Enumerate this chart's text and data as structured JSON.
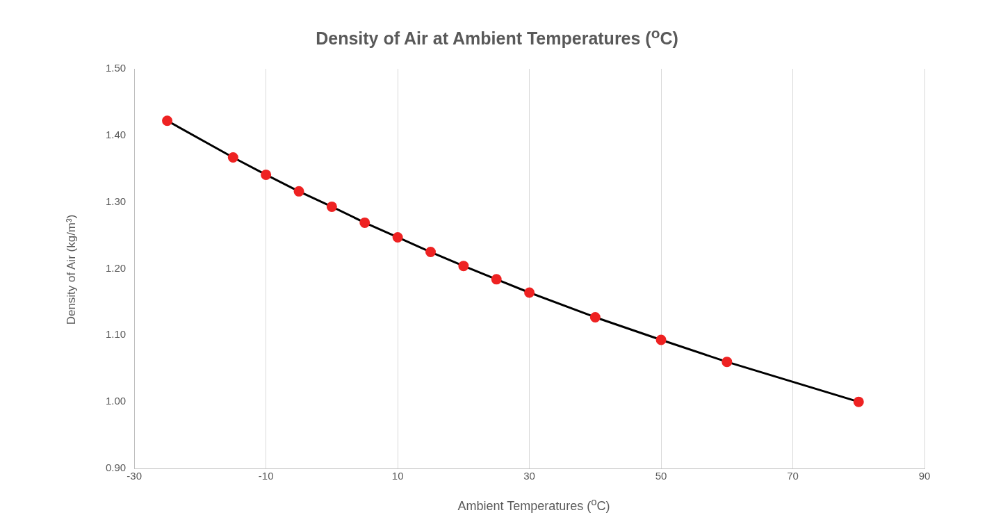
{
  "chart_data": {
    "type": "line",
    "title": "Density of Air at Ambient Temperatures ($^{o}$C)",
    "xlabel": "Ambient Temperatures ($^{o}$C)",
    "ylabel": "Density of Air (kg/m³)",
    "x": [
      -25,
      -15,
      -10,
      -5,
      0,
      5,
      10,
      15,
      20,
      25,
      30,
      40,
      50,
      60,
      80
    ],
    "series": [
      {
        "color": "#000000",
        "colors": [
          "#ee2222",
          "#ee2222",
          "#ee2222",
          "#ee2222",
          "#ee2222",
          "#ee2222",
          "#ee2222",
          "#ee2222",
          "#ee2222",
          "#ee2222",
          "#ee2222",
          "#ee2222",
          "#ee2222",
          "#ee2222",
          "#ee2222"
        ],
        "values": [
          1.422,
          1.367,
          1.341,
          1.316,
          1.293,
          1.269,
          1.247,
          1.225,
          1.204,
          1.184,
          1.164,
          1.127,
          1.093,
          1.06,
          1.0
        ]
      }
    ],
    "xlim": [
      -30,
      90
    ],
    "xticks": [
      -30,
      -10,
      10,
      30,
      50,
      70,
      90
    ],
    "ylim": [
      0.9,
      1.5
    ],
    "yticks": [
      {
        "value": 0.9,
        "label": "0.90"
      },
      {
        "value": 1.0,
        "label": "1.00"
      },
      {
        "value": 1.1,
        "label": "1.10"
      },
      {
        "value": 1.2,
        "label": "1.20"
      },
      {
        "value": 1.3,
        "label": "1.30"
      },
      {
        "value": 1.4,
        "label": "1.40"
      },
      {
        "value": 1.5,
        "label": "1.50"
      }
    ],
    "grid": "x",
    "legend": false,
    "marker": "circle",
    "line_style": "solid"
  }
}
